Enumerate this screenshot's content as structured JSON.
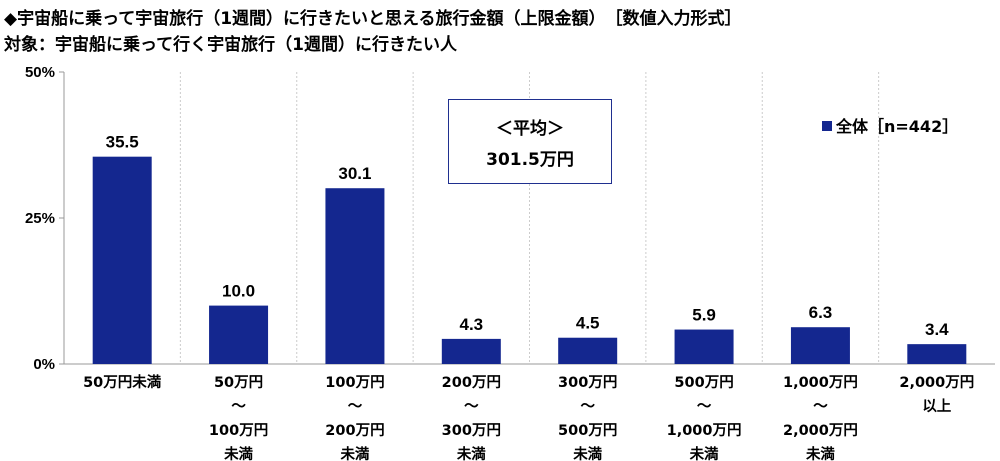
{
  "header": {
    "title": "◆宇宙船に乗って宇宙旅行（1週間）に行きたいと思える旅行金額（上限金額）　［数値入力形式］",
    "subtitle": "対象：宇宙船に乗って行く宇宙旅行（1週間）に行きたい人"
  },
  "average_box": {
    "label": "＜平均＞",
    "value": "301.5万円"
  },
  "legend": {
    "label": "全体［n=442］"
  },
  "colors": {
    "bar": "#14278f",
    "axis": "#999999",
    "grid": "#cccccc"
  },
  "chart_data": {
    "type": "bar",
    "categories": [
      [
        "50万円未満"
      ],
      [
        "50万円",
        "～",
        "100万円",
        "未満"
      ],
      [
        "100万円",
        "～",
        "200万円",
        "未満"
      ],
      [
        "200万円",
        "～",
        "300万円",
        "未満"
      ],
      [
        "300万円",
        "～",
        "500万円",
        "未満"
      ],
      [
        "500万円",
        "～",
        "1,000万円",
        "未満"
      ],
      [
        "1,000万円",
        "～",
        "2,000万円",
        "未満"
      ],
      [
        "2,000万円",
        "以上"
      ]
    ],
    "series": [
      {
        "name": "全体［n=442］",
        "values": [
          35.5,
          10.0,
          30.1,
          4.3,
          4.5,
          5.9,
          6.3,
          3.4
        ]
      }
    ],
    "value_labels": [
      "35.5",
      "10.0",
      "30.1",
      "4.3",
      "4.5",
      "5.9",
      "6.3",
      "3.4"
    ],
    "ylim": [
      0,
      50
    ],
    "yticks": [
      0,
      25,
      50
    ],
    "ytick_labels": [
      "0%",
      "25%",
      "50%"
    ],
    "grid": "vertical separators between categories (dotted)",
    "legend_position": "top-right"
  }
}
